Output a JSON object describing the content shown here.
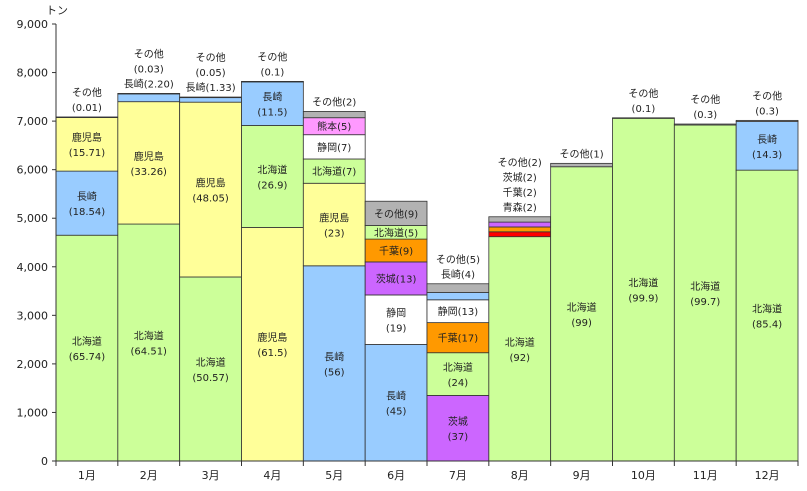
{
  "chart_data": {
    "type": "bar",
    "stacked": true,
    "ylabel": "トン",
    "ylim": [
      0,
      9000
    ],
    "yticks": [
      "0",
      "1,000",
      "2,000",
      "3,000",
      "4,000",
      "5,000",
      "6,000",
      "7,000",
      "8,000",
      "9,000"
    ],
    "ytick_values": [
      0,
      1000,
      2000,
      3000,
      4000,
      5000,
      6000,
      7000,
      8000,
      9000
    ],
    "categories": [
      "1月",
      "2月",
      "3月",
      "4月",
      "5月",
      "6月",
      "7月",
      "8月",
      "9月",
      "10月",
      "11月",
      "12月"
    ],
    "colors": {
      "北海道": "#ccff99",
      "鹿児島": "#ffff99",
      "長崎": "#99ccff",
      "その他": "#b2b2b2",
      "熊本": "#ff99ff",
      "静岡": "#ffffff",
      "茨城": "#cc66ff",
      "千葉": "#ff9900",
      "青森": "#ff0000"
    },
    "months": [
      {
        "segments": [
          {
            "name": "北海道",
            "value": 4650,
            "label": "北海道",
            "pct": "(65.74)",
            "inside": true
          },
          {
            "name": "長崎",
            "value": 1320,
            "label": "長崎",
            "pct": "(18.54)",
            "inside": true
          },
          {
            "name": "鹿児島",
            "value": 1110,
            "label": "鹿児島",
            "pct": "(15.71)",
            "inside": true
          },
          {
            "name": "その他",
            "value": 5,
            "label": "その他",
            "pct": "(0.01)",
            "inside": false
          }
        ]
      },
      {
        "segments": [
          {
            "name": "北海道",
            "value": 4880,
            "label": "北海道",
            "pct": "(64.51)",
            "inside": true
          },
          {
            "name": "鹿児島",
            "value": 2520,
            "label": "鹿児島",
            "pct": "(33.26)",
            "inside": true
          },
          {
            "name": "長崎",
            "value": 165,
            "label": "長崎",
            "pct": "(2.20)",
            "inside": false,
            "inline": true
          },
          {
            "name": "その他",
            "value": 5,
            "label": "その他",
            "pct": "(0.03)",
            "inside": false
          }
        ]
      },
      {
        "segments": [
          {
            "name": "北海道",
            "value": 3790,
            "label": "北海道",
            "pct": "(50.57)",
            "inside": true
          },
          {
            "name": "鹿児島",
            "value": 3600,
            "label": "鹿児島",
            "pct": "(48.05)",
            "inside": true
          },
          {
            "name": "長崎",
            "value": 100,
            "label": "長崎",
            "pct": "(1.33)",
            "inside": false,
            "inline": true
          },
          {
            "name": "その他",
            "value": 5,
            "label": "その他",
            "pct": "(0.05)",
            "inside": false
          }
        ]
      },
      {
        "segments": [
          {
            "name": "鹿児島",
            "value": 4810,
            "label": "鹿児島",
            "pct": "(61.5)",
            "inside": true
          },
          {
            "name": "北海道",
            "value": 2100,
            "label": "北海道",
            "pct": "(26.9)",
            "inside": true
          },
          {
            "name": "長崎",
            "value": 900,
            "label": "長崎",
            "pct": "(11.5)",
            "inside": true
          },
          {
            "name": "その他",
            "value": 8,
            "label": "その他",
            "pct": "(0.1)",
            "inside": false
          }
        ]
      },
      {
        "segments": [
          {
            "name": "長崎",
            "value": 4020,
            "label": "長崎",
            "pct": "(56)",
            "inside": true
          },
          {
            "name": "鹿児島",
            "value": 1700,
            "label": "鹿児島",
            "pct": "(23)",
            "inside": true
          },
          {
            "name": "北海道",
            "value": 500,
            "label": "北海道",
            "pct": "(7)",
            "inside": true,
            "inline": true
          },
          {
            "name": "静岡",
            "value": 500,
            "label": "静岡",
            "pct": "(7)",
            "inside": true,
            "inline": true
          },
          {
            "name": "熊本",
            "value": 350,
            "label": "熊本",
            "pct": "(5)",
            "inside": true,
            "inline": true
          },
          {
            "name": "その他",
            "value": 130,
            "label": "その他",
            "pct": "(2)",
            "inside": false,
            "inline": true
          }
        ]
      },
      {
        "segments": [
          {
            "name": "長崎",
            "value": 2400,
            "label": "長崎",
            "pct": "(45)",
            "inside": true
          },
          {
            "name": "静岡",
            "value": 1020,
            "label": "静岡",
            "pct": "(19)",
            "inside": true
          },
          {
            "name": "茨城",
            "value": 680,
            "label": "茨城",
            "pct": "(13)",
            "inside": true,
            "inline": true
          },
          {
            "name": "千葉",
            "value": 470,
            "label": "千葉",
            "pct": "(9)",
            "inside": true,
            "inline": true
          },
          {
            "name": "北海道",
            "value": 280,
            "label": "北海道",
            "pct": "(5)",
            "inside": true,
            "inline": true
          },
          {
            "name": "その他",
            "value": 500,
            "label": "その他",
            "pct": "(9)",
            "inside": true,
            "inline": true
          }
        ]
      },
      {
        "segments": [
          {
            "name": "茨城",
            "value": 1350,
            "label": "茨城",
            "pct": "(37)",
            "inside": true
          },
          {
            "name": "北海道",
            "value": 880,
            "label": "北海道",
            "pct": "(24)",
            "inside": true
          },
          {
            "name": "千葉",
            "value": 620,
            "label": "千葉",
            "pct": "(17)",
            "inside": true,
            "inline": true
          },
          {
            "name": "静岡",
            "value": 470,
            "label": "静岡",
            "pct": "(13)",
            "inside": true,
            "inline": true
          },
          {
            "name": "長崎",
            "value": 150,
            "label": "長崎",
            "pct": "(4)",
            "inside": false,
            "inline": true
          },
          {
            "name": "その他",
            "value": 180,
            "label": "その他",
            "pct": "(5)",
            "inside": false,
            "inline": true
          }
        ]
      },
      {
        "segments": [
          {
            "name": "北海道",
            "value": 4620,
            "label": "北海道",
            "pct": "(92)",
            "inside": true
          },
          {
            "name": "青森",
            "value": 100,
            "label": "青森",
            "pct": "(2)",
            "inside": false,
            "inline": true
          },
          {
            "name": "千葉",
            "value": 100,
            "label": "千葉",
            "pct": "(2)",
            "inside": false,
            "inline": true
          },
          {
            "name": "茨城",
            "value": 100,
            "label": "茨城",
            "pct": "(2)",
            "inside": false,
            "inline": true
          },
          {
            "name": "その他",
            "value": 110,
            "label": "その他",
            "pct": "(2)",
            "inside": false,
            "inline": true
          }
        ]
      },
      {
        "segments": [
          {
            "name": "北海道",
            "value": 6060,
            "label": "北海道",
            "pct": "(99)",
            "inside": true
          },
          {
            "name": "その他",
            "value": 70,
            "label": "その他",
            "pct": "(1)",
            "inside": false,
            "inline": true
          }
        ]
      },
      {
        "segments": [
          {
            "name": "北海道",
            "value": 7060,
            "label": "北海道",
            "pct": "(99.9)",
            "inside": true
          },
          {
            "name": "その他",
            "value": 8,
            "label": "その他",
            "pct": "(0.1)",
            "inside": false
          }
        ]
      },
      {
        "segments": [
          {
            "name": "北海道",
            "value": 6920,
            "label": "北海道",
            "pct": "(99.7)",
            "inside": true
          },
          {
            "name": "その他",
            "value": 20,
            "label": "その他",
            "pct": "(0.3)",
            "inside": false
          }
        ]
      },
      {
        "segments": [
          {
            "name": "北海道",
            "value": 5990,
            "label": "北海道",
            "pct": "(85.4)",
            "inside": true
          },
          {
            "name": "長崎",
            "value": 1000,
            "label": "長崎",
            "pct": "(14.3)",
            "inside": true
          },
          {
            "name": "その他",
            "value": 25,
            "label": "その他",
            "pct": "(0.3)",
            "inside": false
          }
        ]
      }
    ]
  }
}
